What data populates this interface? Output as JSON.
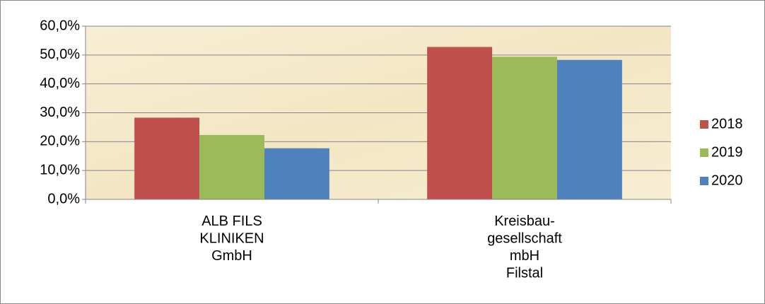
{
  "chart_data": {
    "type": "bar",
    "categories": [
      "ALB FILS\nKLINIKEN\nGmbH",
      "Kreisbau-\ngesellschaft\nmbH\nFilstal"
    ],
    "series": [
      {
        "name": "2018",
        "color": "#c0504d",
        "values": [
          28.3,
          52.8
        ]
      },
      {
        "name": "2019",
        "color": "#9bbb59",
        "values": [
          22.3,
          49.4
        ]
      },
      {
        "name": "2020",
        "color": "#4f81bd",
        "values": [
          17.7,
          48.3
        ]
      }
    ],
    "ylim": [
      0,
      60
    ],
    "yticks": [
      {
        "value": 0,
        "label": "0,0%"
      },
      {
        "value": 10,
        "label": "10,0%"
      },
      {
        "value": 20,
        "label": "20,0%"
      },
      {
        "value": 30,
        "label": "30,0%"
      },
      {
        "value": 40,
        "label": "40,0%"
      },
      {
        "value": 50,
        "label": "50,0%"
      },
      {
        "value": 60,
        "label": "60,0%"
      }
    ],
    "grid": true,
    "legend": "right"
  }
}
